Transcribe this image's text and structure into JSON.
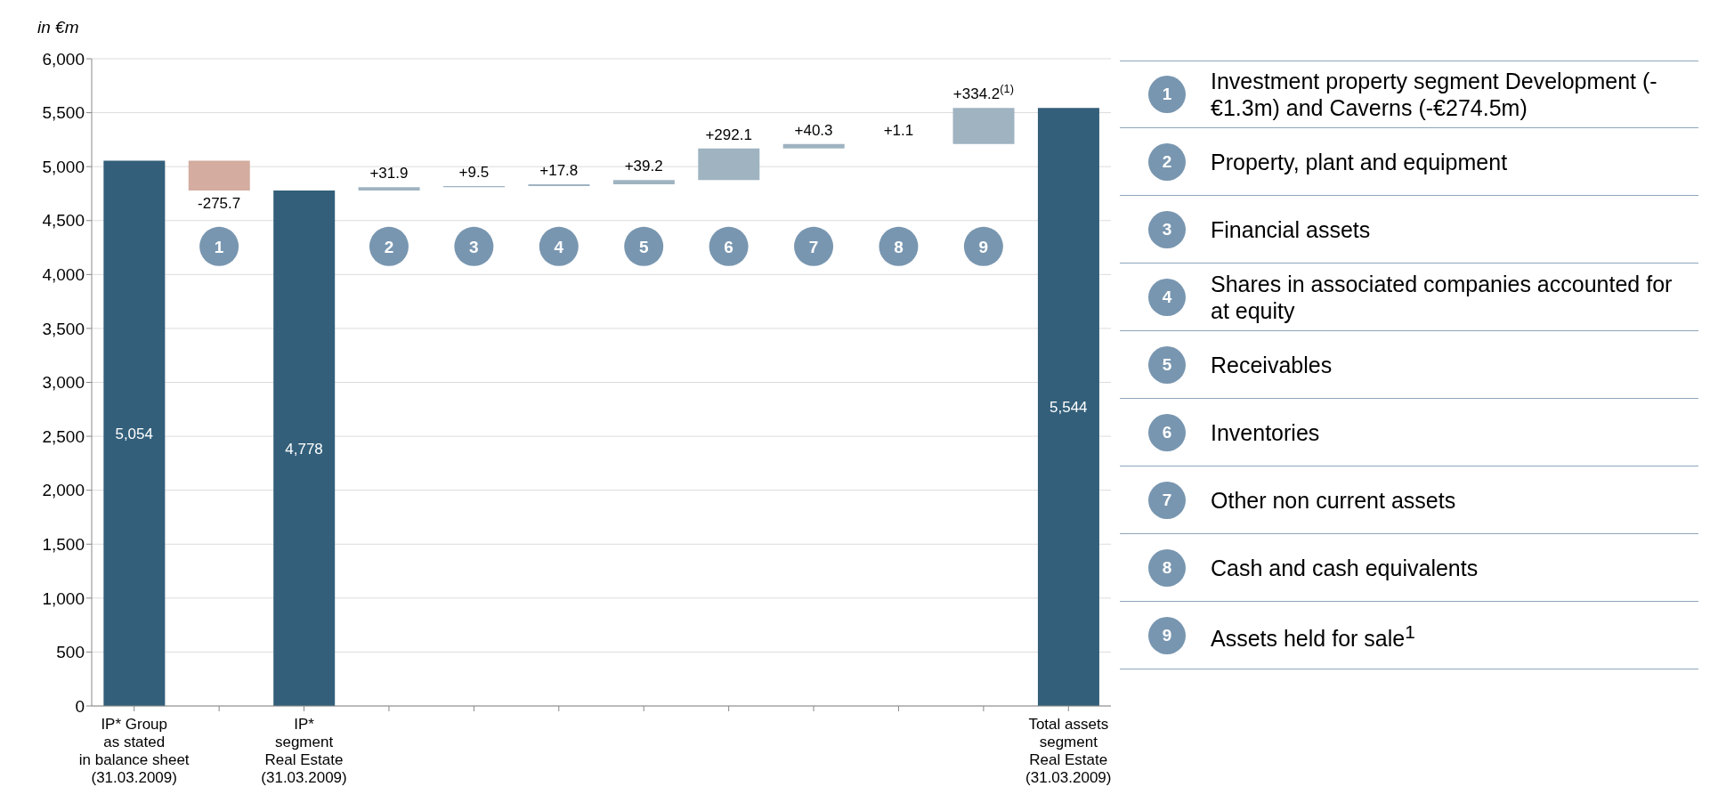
{
  "chart_data": {
    "type": "bar",
    "ylabel": "in €m",
    "categories": [
      "IP* Group\nas stated\nin balance sheet\n(31.03.2009)",
      null,
      "IP*\nsegment\nReal Estate\n(31.03.2009)",
      null,
      null,
      null,
      null,
      null,
      null,
      null,
      null,
      "Total assets\nsegment\nReal Estate\n(31.03.2009)"
    ],
    "values": [
      5054,
      -275.7,
      4778,
      31.9,
      9.5,
      17.8,
      39.2,
      292.1,
      40.3,
      1.1,
      334.2,
      5544
    ],
    "base": [
      0,
      5054,
      0,
      4778,
      4809.9,
      4819.4,
      4837.2,
      4876.4,
      5168.5,
      5208.8,
      5209.9,
      0
    ],
    "colors": [
      "#335f7a",
      "#d4aca0",
      "#335f7a",
      "#9fb3c1",
      "#9fb3c1",
      "#9fb3c1",
      "#9fb3c1",
      "#9fb3c1",
      "#9fb3c1",
      "#9fb3c1",
      "#9fb3c1",
      "#335f7a"
    ],
    "value_labels": [
      "5,054",
      "-275.7",
      "4,778",
      "+31.9",
      "+9.5",
      "+17.8",
      "+39.2",
      "+292.1",
      "+40.3",
      "+1.1",
      "+334.2$^{(1)}$",
      "5,544"
    ],
    "ylim": [
      0,
      6000
    ],
    "yticks": [
      0,
      500,
      {
        "value": 1000,
        "label": "1,000"
      },
      {
        "value": 1500,
        "label": "1,500"
      },
      {
        "value": 2000,
        "label": "2,000"
      },
      {
        "value": 2500,
        "label": "2,500"
      },
      {
        "value": 3000,
        "label": "3,000"
      },
      {
        "value": 3500,
        "label": "3,500"
      },
      {
        "value": 4000,
        "label": "4,000"
      },
      {
        "value": 4500,
        "label": "4,500"
      },
      {
        "value": 5000,
        "label": "5,000"
      },
      {
        "value": 5500,
        "label": "5,500"
      },
      {
        "value": 6000,
        "label": "6,000"
      }
    ],
    "grid": "y",
    "annotations": [
      {
        "text": "1"
      },
      {
        "text": "2"
      },
      {
        "text": "3"
      },
      {
        "text": "4"
      },
      {
        "text": "5"
      },
      {
        "text": "6"
      },
      {
        "text": "7"
      },
      {
        "text": "8"
      },
      {
        "text": "9"
      },
      "Investment property segment Development (-€1.3m) and Caverns (-€274.5m)",
      "Property, plant and equipment",
      "Financial assets",
      "Shares in associated companies accounted for at equity",
      "Receivables",
      "Inventories",
      "Other non current assets",
      "Cash and cash equivalents",
      "Assets held for sale$^{1}$"
    ]
  }
}
